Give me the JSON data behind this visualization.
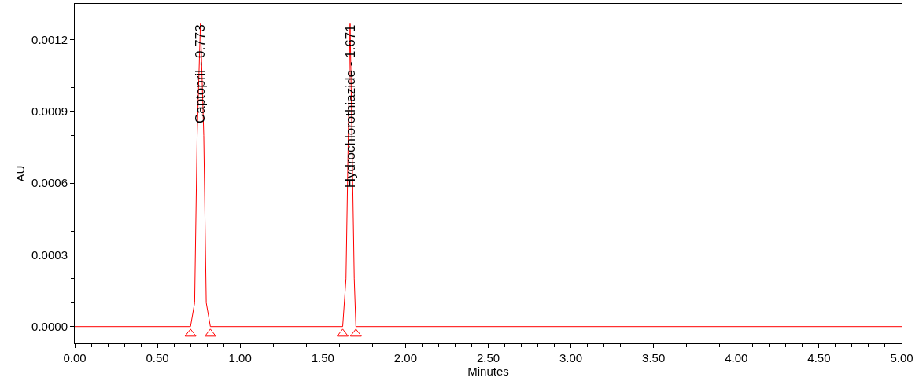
{
  "chart_data": {
    "type": "line",
    "xlabel": "Minutes",
    "ylabel": "AU",
    "xlim": [
      0,
      5
    ],
    "xticks": [
      {
        "value": 0,
        "label": "0.00"
      },
      {
        "value": 0.5,
        "label": "0.50"
      },
      {
        "value": 1,
        "label": "1.00"
      },
      {
        "value": 1.5,
        "label": "1.50"
      },
      {
        "value": 2,
        "label": "2.00"
      },
      {
        "value": 2.5,
        "label": "2.50"
      },
      {
        "value": 3,
        "label": "3.00"
      },
      {
        "value": 3.5,
        "label": "3.50"
      },
      {
        "value": 4,
        "label": "4.00"
      },
      {
        "value": 4.5,
        "label": "4.50"
      },
      {
        "value": 5,
        "label": "5.00"
      }
    ],
    "ylim": [
      -7e-05,
      0.00135
    ],
    "yticks": [
      {
        "value": 0,
        "label": "0.0000"
      },
      {
        "value": 0.0003,
        "label": "0.0003"
      },
      {
        "value": 0.0006,
        "label": "0.0006"
      },
      {
        "value": 0.0009,
        "label": "0.0009"
      },
      {
        "value": 0.0012,
        "label": "0.0012"
      }
    ],
    "series": [
      {
        "color": "#ff0000",
        "marker": "none",
        "line_style": "solid",
        "x": [
          0,
          0.7,
          0.725,
          0.74,
          0.76,
          0.78,
          0.795,
          0.82,
          1.62,
          1.64,
          1.665,
          1.69,
          1.7,
          5
        ],
        "values": [
          0,
          0,
          0.0001,
          0.0008,
          0.00127,
          0.0008,
          0.0001,
          0,
          0,
          0.0002,
          0.00127,
          0.0002,
          0,
          0
        ]
      },
      {
        "type": "scatter",
        "color": "#ff0000",
        "marker": "triangle",
        "x": [
          0.7,
          0.82,
          1.62,
          1.7
        ],
        "values": [
          -3e-05,
          -3e-05,
          -3e-05,
          -3e-05
        ]
      }
    ],
    "annotations": [
      {
        "text": "Captopril - 0.773",
        "x": 0.76,
        "y": 0.00127
      },
      {
        "text": "Hydrochlorothiazide - 1.671",
        "x": 1.665,
        "y": 0.00127
      }
    ]
  }
}
